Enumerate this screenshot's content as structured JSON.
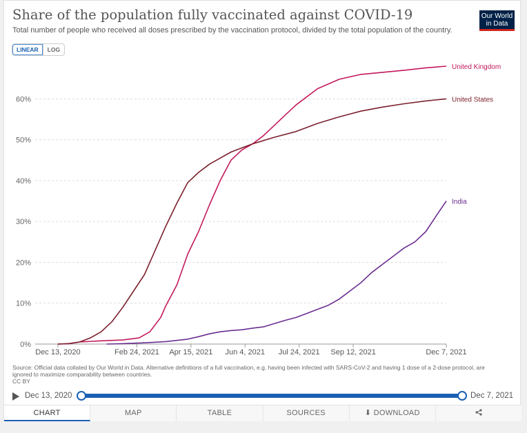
{
  "header": {
    "title": "Share of the population fully vaccinated against COVID-19",
    "subtitle": "Total number of people who received all doses prescribed by the vaccination protocol, divided by the total population of the country.",
    "logo": "Our World in Data"
  },
  "scale": {
    "linear": "LINEAR",
    "log": "LOG",
    "selected": "LINEAR"
  },
  "chart_data": {
    "type": "line",
    "title": "Share of the population fully vaccinated against COVID-19",
    "xlabel": "",
    "ylabel": "",
    "ylim": [
      0,
      68
    ],
    "x_ticks": [
      "Dec 13, 2020",
      "Feb 24, 2021",
      "Apr 15, 2021",
      "Jun 4, 2021",
      "Jul 24, 2021",
      "Sep 12, 2021",
      "Dec 7, 2021"
    ],
    "y_ticks": [
      "0%",
      "10%",
      "20%",
      "30%",
      "40%",
      "50%",
      "60%"
    ],
    "y_tick_values": [
      0,
      10,
      20,
      30,
      40,
      50,
      60
    ],
    "x_tick_days": [
      0,
      73,
      123,
      173,
      223,
      273,
      359
    ],
    "x_range_days": [
      -21,
      359
    ],
    "series": [
      {
        "name": "United Kingdom",
        "color": "#c2185b",
        "x_days": [
          0,
          10,
          20,
          40,
          60,
          75,
          85,
          95,
          100,
          110,
          120,
          130,
          140,
          150,
          160,
          170,
          180,
          190,
          200,
          210,
          220,
          240,
          260,
          280,
          300,
          320,
          340,
          359
        ],
        "values": [
          0,
          0.1,
          0.5,
          0.8,
          1.0,
          1.5,
          3.0,
          6.5,
          9.5,
          14.5,
          22.0,
          27.5,
          34.0,
          40.0,
          45.0,
          47.5,
          49.0,
          51.0,
          53.5,
          56.0,
          58.5,
          62.5,
          64.8,
          66.0,
          66.5,
          67.0,
          67.6,
          68.0
        ]
      },
      {
        "name": "United States",
        "color": "#7a1f2b",
        "x_days": [
          0,
          10,
          20,
          30,
          40,
          50,
          60,
          70,
          80,
          90,
          100,
          110,
          120,
          130,
          140,
          150,
          160,
          170,
          180,
          190,
          200,
          220,
          240,
          260,
          280,
          300,
          320,
          340,
          359
        ],
        "values": [
          0,
          0.1,
          0.5,
          1.5,
          3.0,
          5.5,
          9.0,
          13.0,
          17.0,
          23.0,
          29.0,
          34.5,
          39.5,
          42.0,
          44.0,
          45.5,
          47.0,
          48.0,
          49.0,
          49.8,
          50.6,
          52.0,
          54.0,
          55.6,
          57.0,
          58.0,
          58.8,
          59.5,
          60.0
        ]
      },
      {
        "name": "India",
        "color": "#6a2c91",
        "x_days": [
          45,
          60,
          80,
          100,
          120,
          130,
          140,
          150,
          160,
          170,
          180,
          190,
          200,
          210,
          220,
          230,
          240,
          250,
          260,
          270,
          280,
          290,
          300,
          310,
          320,
          330,
          340,
          350,
          359
        ],
        "values": [
          0,
          0.1,
          0.3,
          0.6,
          1.2,
          1.8,
          2.5,
          3.0,
          3.3,
          3.5,
          3.9,
          4.2,
          5.0,
          5.8,
          6.5,
          7.5,
          8.5,
          9.5,
          11.0,
          13.0,
          15.0,
          17.5,
          19.5,
          21.5,
          23.5,
          25.0,
          27.5,
          31.5,
          35.0
        ]
      }
    ]
  },
  "source": {
    "text": "Source: Official data collated by Our World in Data. Alternative definitions of a full vaccination, e.g. having been infected with SARS-CoV-2 and having 1 dose of a 2-dose protocol, are ignored to maximize comparability between countries.",
    "license": "CC BY"
  },
  "timeline": {
    "start": "Dec 13, 2020",
    "end": "Dec 7, 2021"
  },
  "tabs": {
    "chart": "CHART",
    "map": "MAP",
    "table": "TABLE",
    "sources": "SOURCES",
    "download": "DOWNLOAD"
  }
}
